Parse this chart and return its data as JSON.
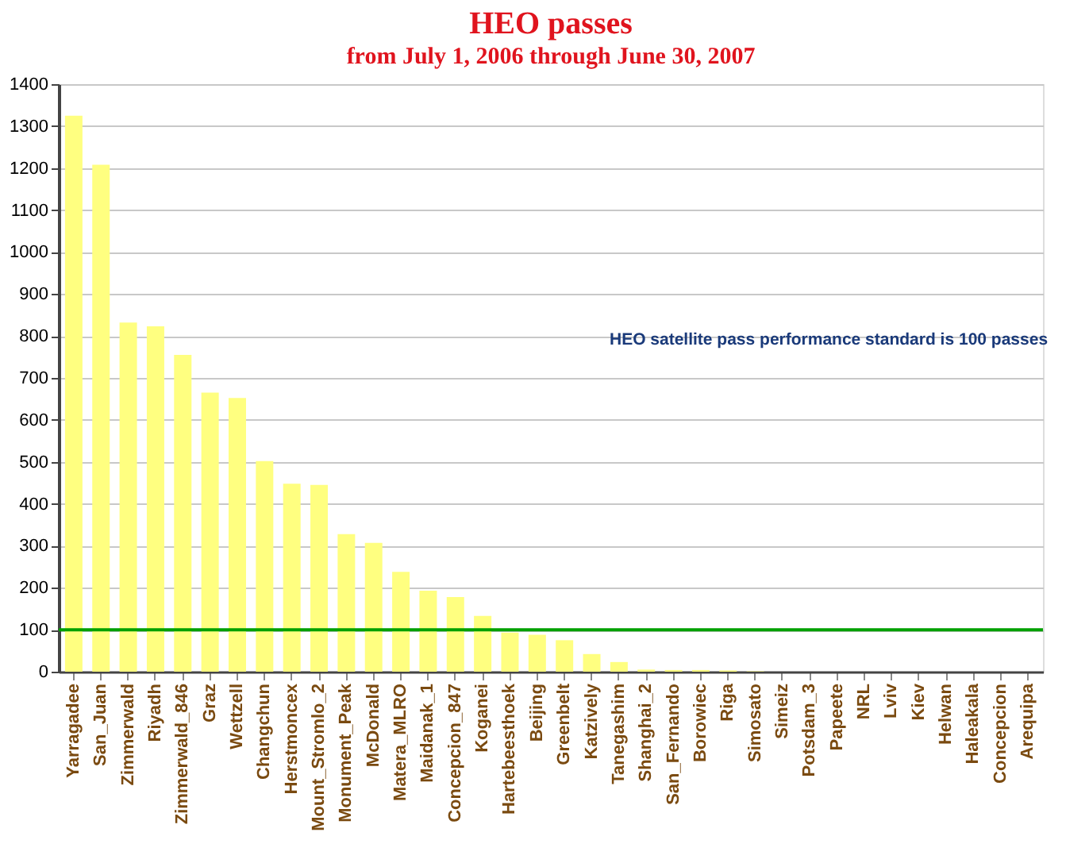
{
  "chart_data": {
    "type": "bar",
    "title": "HEO passes",
    "subtitle": "from July 1, 2006 through June 30, 2007",
    "categories": [
      "Yarragadee",
      "San_Juan",
      "Zimmerwald",
      "Riyadh",
      "Zimmerwald_846",
      "Graz",
      "Wettzell",
      "Changchun",
      "Herstmoncex",
      "Mount_Stromlo_2",
      "Monument_Peak",
      "McDonald",
      "Matera_MLRO",
      "Maidanak_1",
      "Concepcion_847",
      "Koganei",
      "Hartebeesthoek",
      "Beijing",
      "Greenbelt",
      "Katzively",
      "Tanegashim",
      "Shanghai_2",
      "San_Fernando",
      "Borowiec",
      "Riga",
      "Simosato",
      "Simeiz",
      "Potsdam_3",
      "Papeete",
      "NRL",
      "Lviv",
      "Kiev",
      "Helwan",
      "Haleakala",
      "Concepcion",
      "Arequipa"
    ],
    "values": [
      1325,
      1208,
      832,
      823,
      755,
      665,
      652,
      502,
      448,
      445,
      328,
      307,
      238,
      193,
      178,
      133,
      93,
      88,
      75,
      42,
      23,
      5,
      4,
      4,
      3,
      1,
      0,
      0,
      0,
      0,
      0,
      0,
      0,
      0,
      0,
      0
    ],
    "color": "#ffff80",
    "ylim": [
      0,
      1400
    ],
    "yticks": [
      0,
      100,
      200,
      300,
      400,
      500,
      600,
      700,
      800,
      900,
      1000,
      1100,
      1200,
      1300,
      1400
    ],
    "grid": "y",
    "ref_lines": [
      {
        "axis": "y",
        "value": 100,
        "color": "#00a000"
      }
    ],
    "annotations": [
      "HEO satellite pass performance standard is 100 passes"
    ]
  }
}
